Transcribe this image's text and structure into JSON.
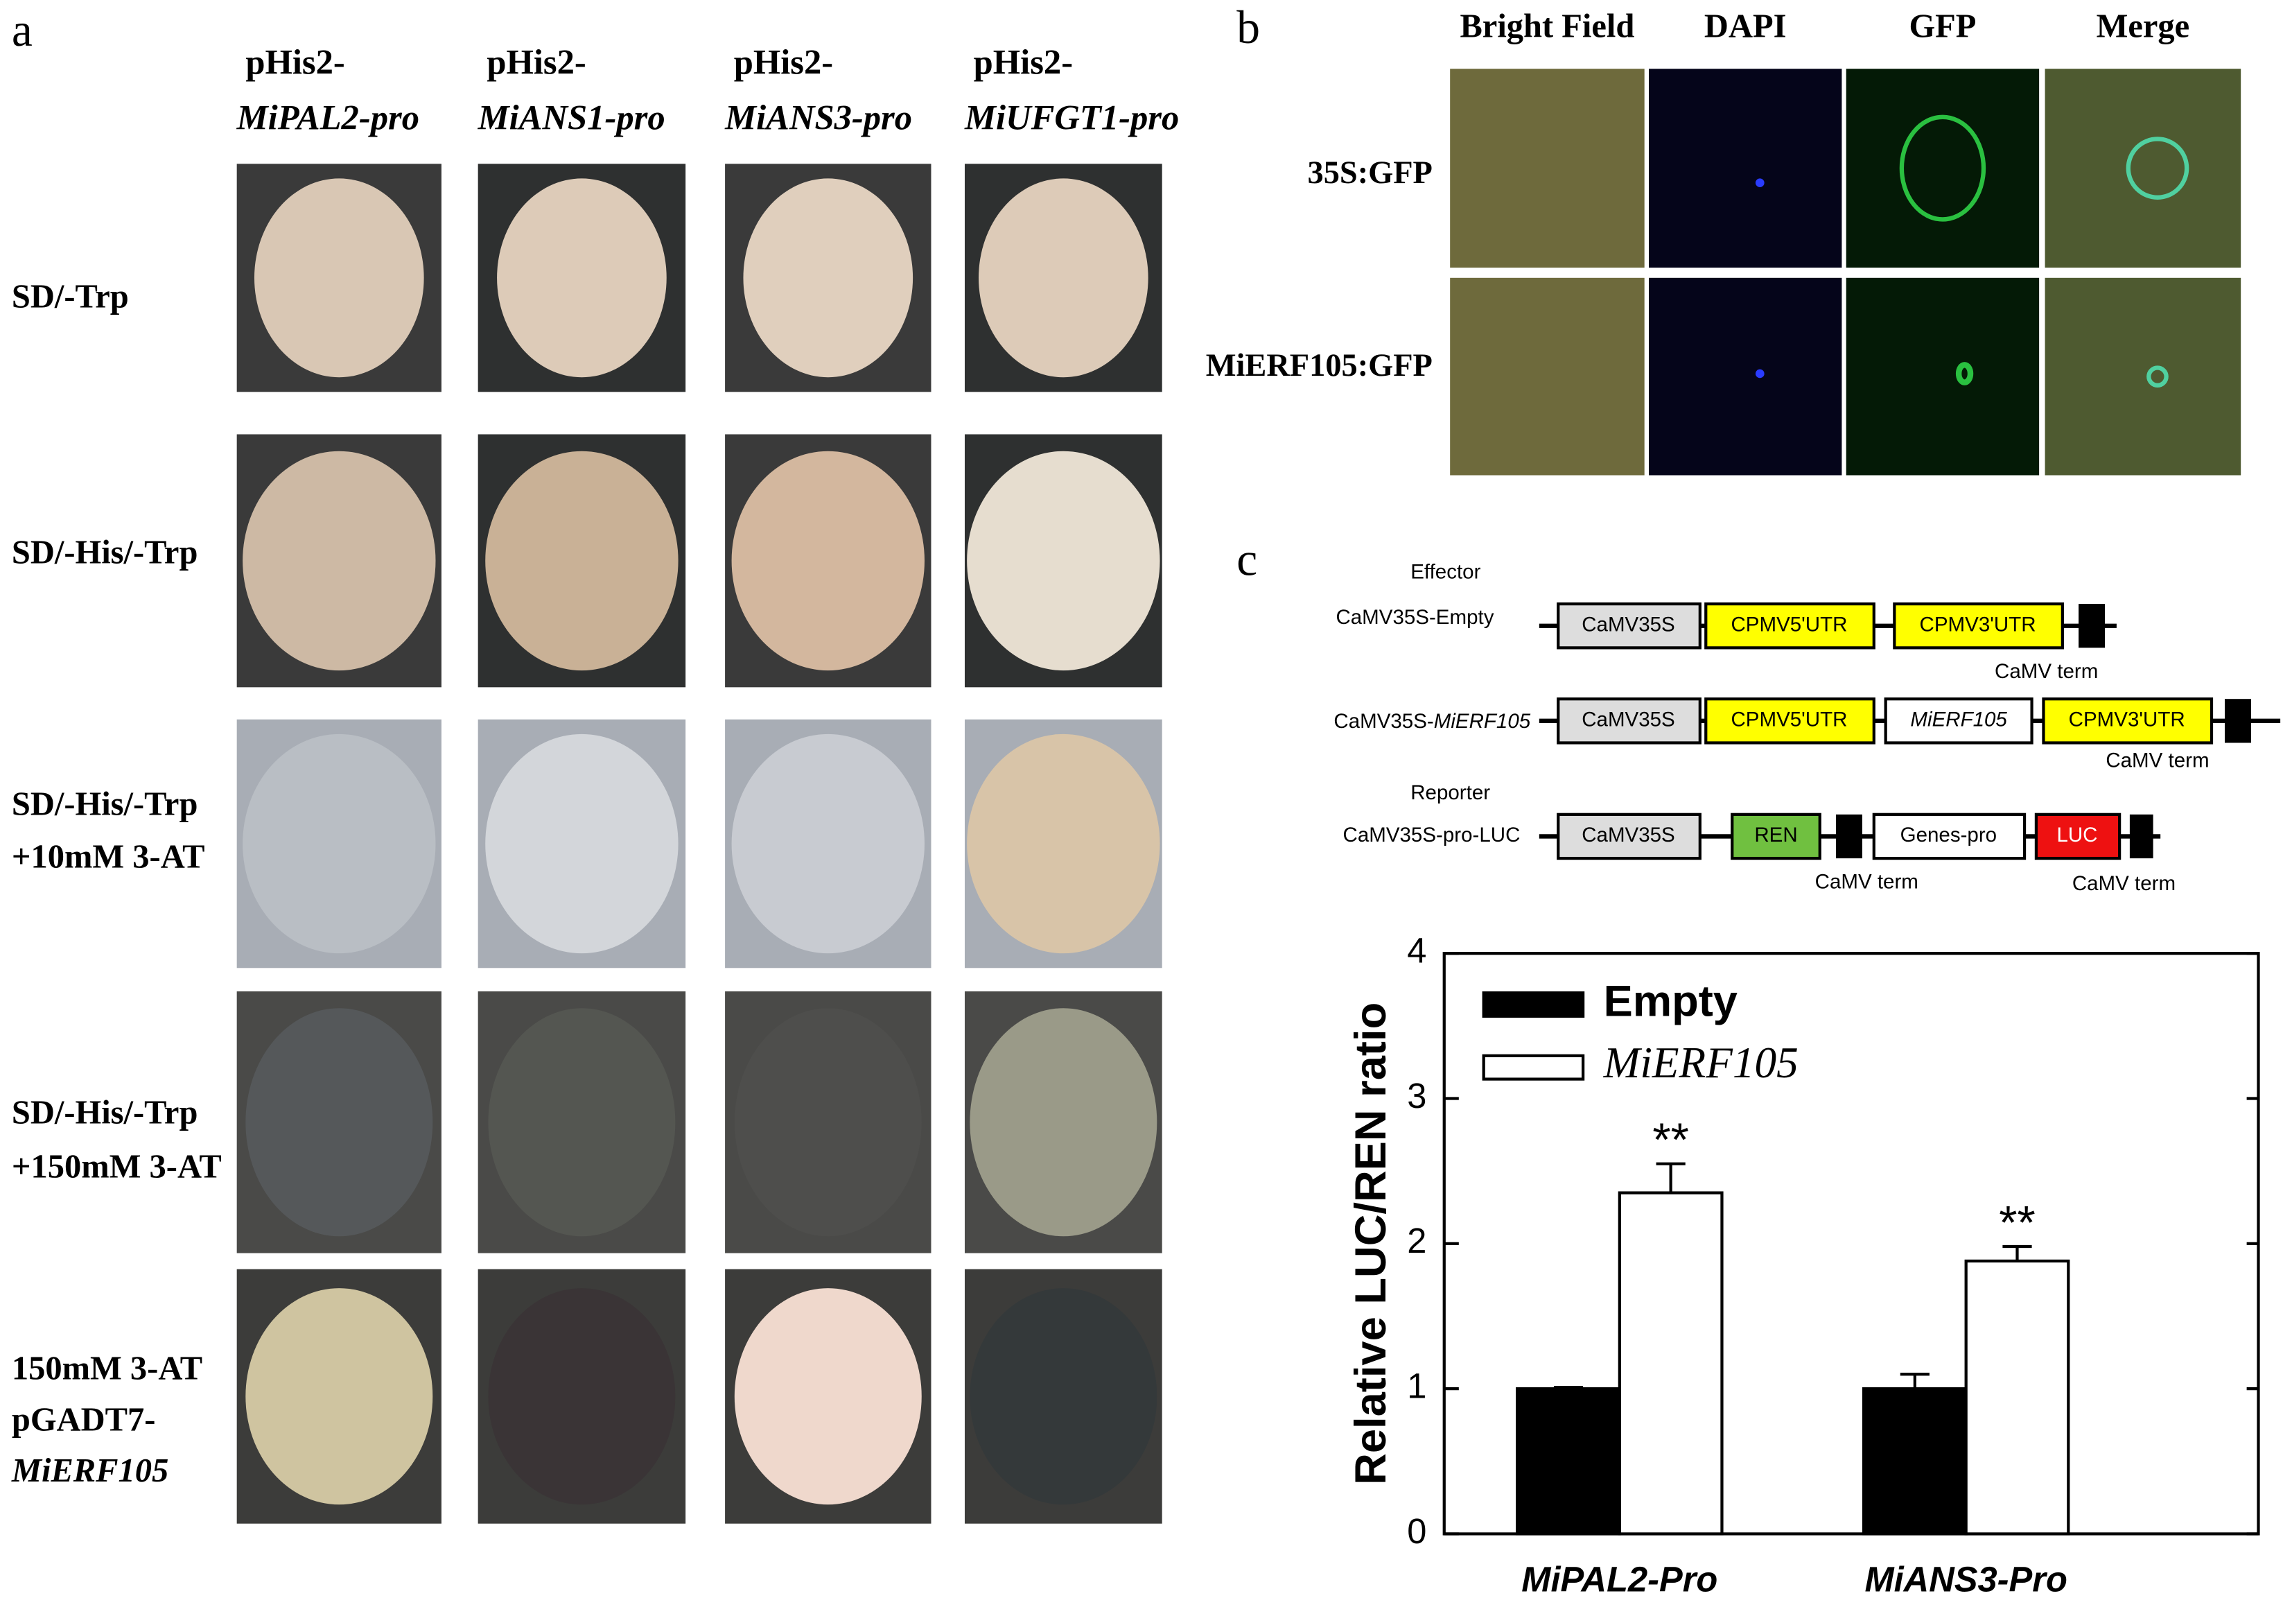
{
  "panel_labels": [
    "a",
    "b",
    "c"
  ],
  "panel_a": {
    "columns": [
      {
        "prefix": "pHis2-",
        "promoter": "MiPAL2-pro"
      },
      {
        "prefix": "pHis2-",
        "promoter": "MiANS1-pro"
      },
      {
        "prefix": "pHis2-",
        "promoter": "MiANS3-pro"
      },
      {
        "prefix": "pHis2-",
        "promoter": "MiUFGT1-pro"
      }
    ],
    "rows": [
      [
        "SD/-Trp"
      ],
      [
        "SD/-His/-Trp"
      ],
      [
        "SD/-His/-Trp",
        "+10mM 3-AT"
      ],
      [
        "SD/-His/-Trp",
        "+150mM 3-AT"
      ],
      [
        "150mM 3-AT",
        "pGADT7-",
        "MiERF105"
      ]
    ]
  },
  "panel_b": {
    "columns": [
      "Bright Field",
      "DAPI",
      "GFP",
      "Merge"
    ],
    "rows": [
      "35S:GFP",
      "MiERF105:GFP"
    ]
  },
  "panel_c_diagram": {
    "effector": "Effector",
    "reporter": "Reporter",
    "construct_1": {
      "name": "CaMV35S-Empty",
      "parts": [
        "CaMV35S",
        "CPMV5'UTR",
        "CPMV3'UTR"
      ],
      "terminator": "CaMV term"
    },
    "construct_2": {
      "name_prefix": "CaMV35S-",
      "name_gene": "MiERF105",
      "parts": [
        "CaMV35S",
        "CPMV5'UTR",
        "MiERF105",
        "CPMV3'UTR"
      ],
      "terminator": "CaMV term"
    },
    "construct_3": {
      "name": "CaMV35S-pro-LUC",
      "parts": [
        "CaMV35S",
        "REN",
        "Genes-pro",
        "LUC"
      ],
      "terminators": [
        "CaMV term",
        "CaMV term"
      ]
    }
  },
  "chart_data": {
    "type": "bar",
    "ylabel": "Relative LUC/REN ratio",
    "categories": [
      "MiPAL2-Pro",
      "MiANS3-Pro"
    ],
    "series": [
      {
        "name": "Empty",
        "color": "#000000",
        "values": [
          1.0,
          1.0
        ],
        "errors": [
          0.01,
          0.1
        ]
      },
      {
        "name": "MiERF105",
        "color": "#ffffff",
        "values": [
          2.35,
          1.88
        ],
        "errors": [
          0.2,
          0.1
        ],
        "annotations": [
          "**",
          "**"
        ]
      }
    ],
    "ylim": [
      0,
      4
    ],
    "yticks": [
      0,
      1,
      2,
      3,
      4
    ],
    "legend": "upper left"
  }
}
